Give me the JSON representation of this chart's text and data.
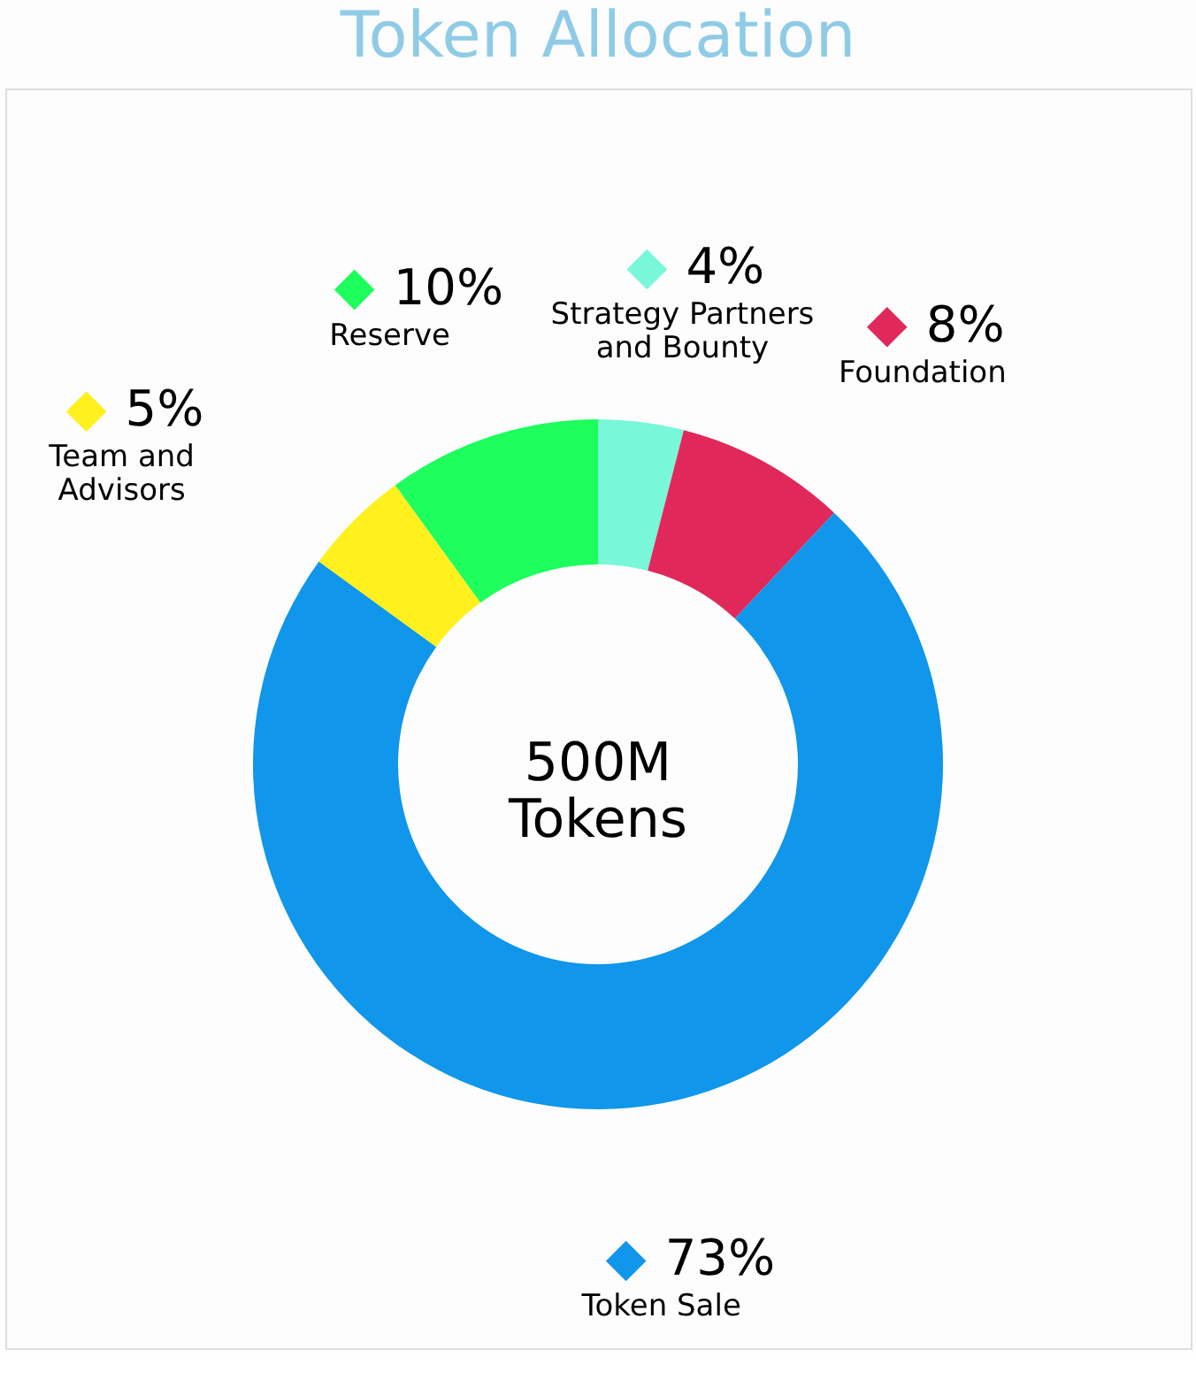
{
  "chart_data": {
    "type": "donut",
    "title": "Token Allocation",
    "categories": [
      "Strategy Partners and Bounty",
      "Foundation",
      "Token Sale",
      "Team and Advisors",
      "Reserve"
    ],
    "values": [
      4,
      8,
      73,
      5,
      10
    ],
    "colors": [
      "#78f7d9",
      "#e0285a",
      "#1096ea",
      "#fff01e",
      "#1efe5c"
    ],
    "value_labels": [
      "4%",
      "8%",
      "73%",
      "5%",
      "10%"
    ],
    "annotations": [
      "500M Tokens"
    ],
    "legend": "bottom left"
  }
}
